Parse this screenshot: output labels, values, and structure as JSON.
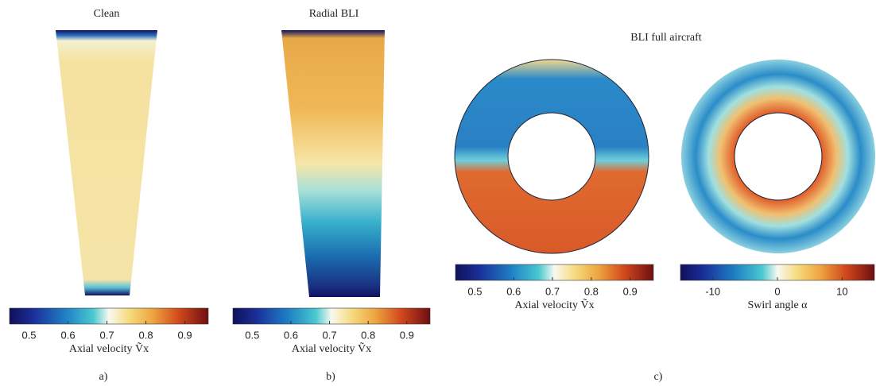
{
  "figure": {
    "panels": [
      {
        "title": "Clean",
        "label": "a)",
        "colorbars": [
          {
            "label": "Axial velocity Ṽx",
            "lim": [
              0.45,
              0.96
            ],
            "ticks": [
              0.5,
              0.6,
              0.7,
              0.8,
              0.9
            ]
          }
        ]
      },
      {
        "title": "Radial BLI",
        "label": "b)",
        "colorbars": [
          {
            "label": "Axial velocity Ṽx",
            "lim": [
              0.45,
              0.96
            ],
            "ticks": [
              0.5,
              0.6,
              0.7,
              0.8,
              0.9
            ]
          }
        ]
      },
      {
        "title": "BLI full aircraft",
        "label": "c)",
        "colorbars": [
          {
            "label": "Axial velocity Ṽx",
            "lim": [
              0.45,
              0.96
            ],
            "ticks": [
              0.5,
              0.6,
              0.7,
              0.8,
              0.9
            ]
          },
          {
            "label": "Swirl angle α",
            "lim": [
              -15,
              15
            ],
            "ticks": [
              -10,
              0,
              10
            ]
          }
        ]
      }
    ]
  }
}
